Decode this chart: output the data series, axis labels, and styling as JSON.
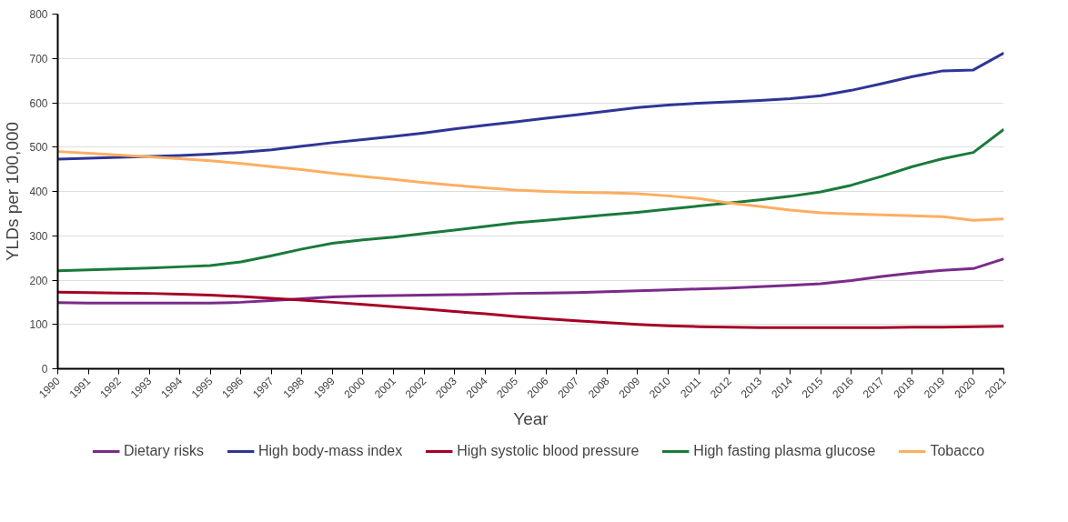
{
  "chart_data": {
    "type": "line",
    "xlabel": "Year",
    "ylabel": "YLDs per 100,000",
    "x": [
      1990,
      1991,
      1992,
      1993,
      1994,
      1995,
      1996,
      1997,
      1998,
      1999,
      2000,
      2001,
      2002,
      2003,
      2004,
      2005,
      2006,
      2007,
      2008,
      2009,
      2010,
      2011,
      2012,
      2013,
      2014,
      2015,
      2016,
      2017,
      2018,
      2019,
      2020,
      2021
    ],
    "series": [
      {
        "name": "Dietary risks",
        "color": "#7b2a8a",
        "values": [
          149,
          148,
          148,
          148,
          148,
          148,
          150,
          154,
          158,
          162,
          164,
          165,
          166,
          167,
          168,
          170,
          171,
          172,
          174,
          176,
          178,
          180,
          182,
          185,
          188,
          192,
          199,
          208,
          216,
          222,
          226,
          248
        ]
      },
      {
        "name": "High body-mass index",
        "color": "#2f3596",
        "values": [
          473,
          475,
          477,
          479,
          481,
          484,
          488,
          494,
          502,
          510,
          517,
          524,
          532,
          541,
          549,
          557,
          565,
          573,
          581,
          589,
          595,
          599,
          602,
          605,
          609,
          616,
          628,
          643,
          659,
          672,
          674,
          712
        ]
      },
      {
        "name": "High systolic blood pressure",
        "color": "#a50026",
        "values": [
          173,
          172,
          171,
          170,
          168,
          166,
          163,
          159,
          155,
          150,
          145,
          140,
          135,
          129,
          124,
          118,
          113,
          108,
          104,
          100,
          97,
          95,
          94,
          93,
          93,
          93,
          93,
          93,
          94,
          94,
          95,
          96
        ]
      },
      {
        "name": "High fasting plasma glucose",
        "color": "#1a7a3a",
        "values": [
          221,
          223,
          225,
          227,
          230,
          233,
          241,
          255,
          270,
          283,
          291,
          297,
          305,
          313,
          321,
          329,
          335,
          341,
          347,
          353,
          360,
          367,
          374,
          381,
          389,
          399,
          414,
          434,
          456,
          474,
          488,
          540
        ]
      },
      {
        "name": "Tobacco",
        "color": "#fdae61",
        "values": [
          490,
          486,
          482,
          478,
          474,
          469,
          463,
          456,
          449,
          441,
          434,
          427,
          420,
          414,
          408,
          403,
          400,
          398,
          397,
          395,
          390,
          384,
          374,
          366,
          358,
          352,
          349,
          347,
          345,
          343,
          335,
          338
        ]
      }
    ],
    "xlim": [
      1990,
      2021
    ],
    "xticks": [
      1990,
      1991,
      1992,
      1993,
      1994,
      1995,
      1996,
      1997,
      1998,
      1999,
      2000,
      2001,
      2002,
      2003,
      2004,
      2005,
      2006,
      2007,
      2008,
      2009,
      2010,
      2011,
      2012,
      2013,
      2014,
      2015,
      2016,
      2017,
      2018,
      2019,
      2020,
      2021
    ],
    "ylim": [
      0,
      800
    ],
    "yticks": [
      0,
      100,
      200,
      300,
      400,
      500,
      600,
      700,
      800
    ],
    "grid": "y",
    "legend": "bottom",
    "marker": "none",
    "line_style": "solid"
  }
}
